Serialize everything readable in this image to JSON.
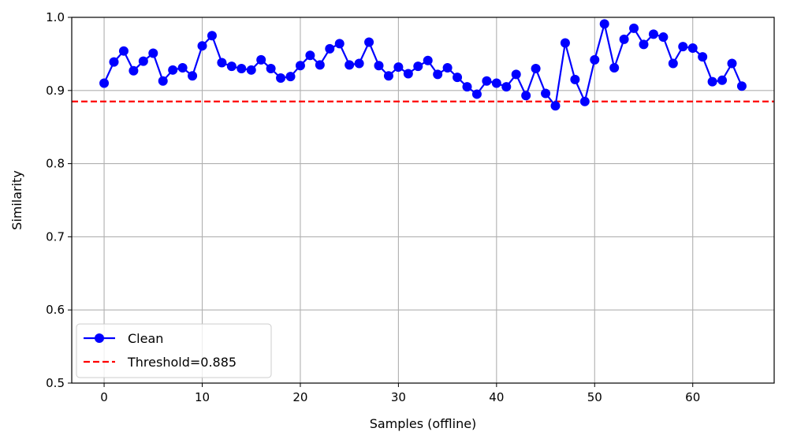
{
  "chart_data": {
    "type": "line",
    "title": "",
    "xlabel": "Samples (offline)",
    "ylabel": "Similarity",
    "xlim": [
      -3.3,
      68.3
    ],
    "ylim": [
      0.5,
      1.0
    ],
    "x_ticks": [
      0,
      10,
      20,
      30,
      40,
      50,
      60
    ],
    "y_ticks": [
      0.5,
      0.6,
      0.7,
      0.8,
      0.9,
      1.0
    ],
    "x_tick_labels": [
      "0",
      "10",
      "20",
      "30",
      "40",
      "50",
      "60"
    ],
    "y_tick_labels": [
      "0.5",
      "0.6",
      "0.7",
      "0.8",
      "0.9",
      "1.0"
    ],
    "grid": true,
    "legend_position": "lower-left",
    "series": [
      {
        "name": "Clean",
        "color": "#0000ff",
        "marker": "circle",
        "x": [
          0,
          1,
          2,
          3,
          4,
          5,
          6,
          7,
          8,
          9,
          10,
          11,
          12,
          13,
          14,
          15,
          16,
          17,
          18,
          19,
          20,
          21,
          22,
          23,
          24,
          25,
          26,
          27,
          28,
          29,
          30,
          31,
          32,
          33,
          34,
          35,
          36,
          37,
          38,
          39,
          40,
          41,
          42,
          43,
          44,
          45,
          46,
          47,
          48,
          49,
          50,
          51,
          52,
          53,
          54,
          55,
          56,
          57,
          58,
          59,
          60,
          61,
          62,
          63,
          64,
          65
        ],
        "y": [
          0.91,
          0.939,
          0.954,
          0.927,
          0.94,
          0.951,
          0.913,
          0.928,
          0.931,
          0.92,
          0.961,
          0.975,
          0.938,
          0.933,
          0.93,
          0.928,
          0.942,
          0.93,
          0.917,
          0.919,
          0.934,
          0.948,
          0.935,
          0.957,
          0.964,
          0.935,
          0.937,
          0.966,
          0.934,
          0.92,
          0.932,
          0.923,
          0.933,
          0.941,
          0.922,
          0.931,
          0.918,
          0.905,
          0.895,
          0.913,
          0.91,
          0.905,
          0.922,
          0.893,
          0.93,
          0.896,
          0.879,
          0.965,
          0.915,
          0.885,
          0.942,
          0.991,
          0.931,
          0.97,
          0.985,
          0.963,
          0.977,
          0.973,
          0.937,
          0.96,
          0.958,
          0.946,
          0.912,
          0.914,
          0.937,
          0.906
        ]
      }
    ],
    "reference_lines": [
      {
        "name": "Threshold=0.885",
        "y": 0.885,
        "color": "#ff0000",
        "style": "dashed"
      }
    ]
  }
}
